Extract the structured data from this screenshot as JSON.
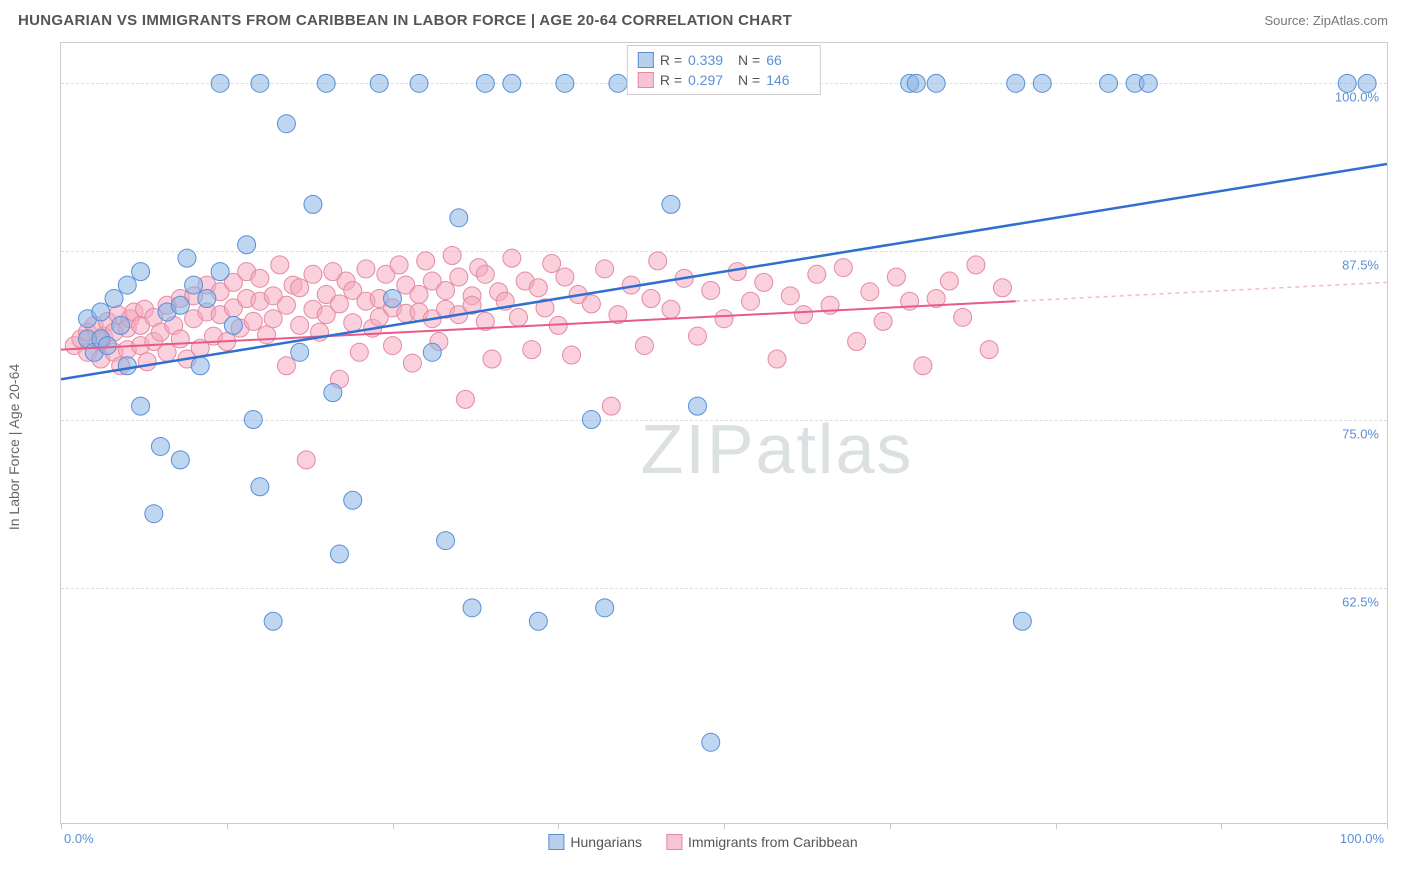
{
  "header": {
    "title": "HUNGARIAN VS IMMIGRANTS FROM CARIBBEAN IN LABOR FORCE | AGE 20-64 CORRELATION CHART",
    "source": "Source: ZipAtlas.com"
  },
  "chart": {
    "type": "scatter",
    "ylabel": "In Labor Force | Age 20-64",
    "watermark": "ZIPatlas",
    "xlim": [
      0,
      100
    ],
    "ylim": [
      45,
      103
    ],
    "y_ticks": [
      {
        "v": 62.5,
        "label": "62.5%"
      },
      {
        "v": 75.0,
        "label": "75.0%"
      },
      {
        "v": 87.5,
        "label": "87.5%"
      },
      {
        "v": 100.0,
        "label": "100.0%"
      }
    ],
    "x_ticks_labels": {
      "left": "0.0%",
      "right": "100.0%"
    },
    "x_tick_marks": [
      0,
      12.5,
      25,
      37.5,
      50,
      62.5,
      75,
      87.5,
      100
    ],
    "grid_color": "#dddddd",
    "background_color": "#ffffff",
    "border_color": "#cccccc",
    "marker_radius": 9,
    "legend_top": {
      "rows": [
        {
          "swatch_fill": "#b7d0ee",
          "swatch_border": "#5a8fd6",
          "r_label": "R =",
          "r_val": "0.339",
          "n_label": "N =",
          "n_val": "66"
        },
        {
          "swatch_fill": "#f6c4d2",
          "swatch_border": "#e48aa4",
          "r_label": "R =",
          "r_val": "0.297",
          "n_label": "N =",
          "n_val": "146"
        }
      ]
    },
    "legend_bottom": [
      {
        "swatch_fill": "#b7d0ee",
        "swatch_border": "#5a8fd6",
        "label": "Hungarians"
      },
      {
        "swatch_fill": "#f6c4d2",
        "swatch_border": "#e48aa4",
        "label": "Immigrants from Caribbean"
      }
    ],
    "series_blue": {
      "color_fill": "rgba(138,180,230,0.55)",
      "color_stroke": "#5a8fd6",
      "trend": {
        "x1": 0,
        "y1": 78.0,
        "x2": 100,
        "y2": 94.0,
        "color": "#2e6fd0",
        "width": 2.5
      },
      "points": [
        [
          2,
          81
        ],
        [
          2,
          82.5
        ],
        [
          2.5,
          80
        ],
        [
          3,
          81
        ],
        [
          3,
          83
        ],
        [
          3.5,
          80.5
        ],
        [
          4,
          84
        ],
        [
          4.5,
          82
        ],
        [
          5,
          85
        ],
        [
          5,
          79
        ],
        [
          6,
          86
        ],
        [
          6,
          76
        ],
        [
          7,
          68
        ],
        [
          7.5,
          73
        ],
        [
          8,
          83
        ],
        [
          9,
          83.5
        ],
        [
          9.5,
          87
        ],
        [
          10,
          85
        ],
        [
          10.5,
          79
        ],
        [
          11,
          84
        ],
        [
          12,
          100
        ],
        [
          12,
          86
        ],
        [
          13,
          82
        ],
        [
          14,
          88
        ],
        [
          14.5,
          75
        ],
        [
          15,
          70
        ],
        [
          16,
          60
        ],
        [
          17,
          97
        ],
        [
          18,
          80
        ],
        [
          19,
          91
        ],
        [
          20,
          100
        ],
        [
          20.5,
          77
        ],
        [
          21,
          65
        ],
        [
          22,
          69
        ],
        [
          24,
          100
        ],
        [
          25,
          84
        ],
        [
          27,
          100
        ],
        [
          28,
          80
        ],
        [
          29,
          66
        ],
        [
          30,
          90
        ],
        [
          31,
          61
        ],
        [
          32,
          100
        ],
        [
          34,
          100
        ],
        [
          36,
          60
        ],
        [
          38,
          100
        ],
        [
          40,
          75
        ],
        [
          41,
          61
        ],
        [
          44,
          100
        ],
        [
          45,
          100
        ],
        [
          46,
          91
        ],
        [
          48,
          76
        ],
        [
          49,
          51
        ],
        [
          64,
          100
        ],
        [
          64.5,
          100
        ],
        [
          66,
          100
        ],
        [
          72,
          100
        ],
        [
          72.5,
          60
        ],
        [
          74,
          100
        ],
        [
          79,
          100
        ],
        [
          81,
          100
        ],
        [
          82,
          100
        ],
        [
          97,
          100
        ],
        [
          98.5,
          100
        ],
        [
          15,
          100
        ],
        [
          42,
          100
        ],
        [
          9,
          72
        ]
      ]
    },
    "series_pink": {
      "color_fill": "rgba(244,170,190,0.55)",
      "color_stroke": "#e48aa4",
      "trend": {
        "x1": 0,
        "y1": 80.2,
        "x2": 72,
        "y2": 83.8,
        "color": "#e75a8a",
        "width": 2
      },
      "trend_extrapolate": {
        "x1": 72,
        "y1": 83.8,
        "x2": 100,
        "y2": 85.2,
        "color": "#f5b8c9"
      },
      "points": [
        [
          1,
          80.5
        ],
        [
          1.5,
          81
        ],
        [
          2,
          80
        ],
        [
          2,
          81.5
        ],
        [
          2.5,
          82
        ],
        [
          3,
          79.5
        ],
        [
          3,
          80.8
        ],
        [
          3.2,
          81.2
        ],
        [
          3.5,
          82.3
        ],
        [
          4,
          80
        ],
        [
          4,
          81.5
        ],
        [
          4.3,
          82.8
        ],
        [
          4.5,
          79
        ],
        [
          5,
          80.2
        ],
        [
          5,
          81.8
        ],
        [
          5.2,
          82.5
        ],
        [
          5.5,
          83
        ],
        [
          6,
          80.5
        ],
        [
          6,
          82
        ],
        [
          6.3,
          83.2
        ],
        [
          6.5,
          79.3
        ],
        [
          7,
          80.8
        ],
        [
          7,
          82.6
        ],
        [
          7.5,
          81.5
        ],
        [
          8,
          83.5
        ],
        [
          8,
          80
        ],
        [
          8.5,
          82
        ],
        [
          9,
          84
        ],
        [
          9,
          81
        ],
        [
          9.5,
          79.5
        ],
        [
          10,
          82.5
        ],
        [
          10,
          84.2
        ],
        [
          10.5,
          80.3
        ],
        [
          11,
          83
        ],
        [
          11,
          85
        ],
        [
          11.5,
          81.2
        ],
        [
          12,
          82.8
        ],
        [
          12,
          84.5
        ],
        [
          12.5,
          80.8
        ],
        [
          13,
          83.3
        ],
        [
          13,
          85.2
        ],
        [
          13.5,
          81.8
        ],
        [
          14,
          84
        ],
        [
          14,
          86
        ],
        [
          14.5,
          82.3
        ],
        [
          15,
          83.8
        ],
        [
          15,
          85.5
        ],
        [
          15.5,
          81.3
        ],
        [
          16,
          84.2
        ],
        [
          16,
          82.5
        ],
        [
          16.5,
          86.5
        ],
        [
          17,
          83.5
        ],
        [
          17,
          79
        ],
        [
          17.5,
          85
        ],
        [
          18,
          82
        ],
        [
          18,
          84.8
        ],
        [
          18.5,
          72
        ],
        [
          19,
          83.2
        ],
        [
          19,
          85.8
        ],
        [
          19.5,
          81.5
        ],
        [
          20,
          84.3
        ],
        [
          20,
          82.8
        ],
        [
          20.5,
          86
        ],
        [
          21,
          83.6
        ],
        [
          21,
          78
        ],
        [
          21.5,
          85.3
        ],
        [
          22,
          82.2
        ],
        [
          22,
          84.6
        ],
        [
          22.5,
          80
        ],
        [
          23,
          83.8
        ],
        [
          23,
          86.2
        ],
        [
          23.5,
          81.8
        ],
        [
          24,
          84
        ],
        [
          24,
          82.6
        ],
        [
          24.5,
          85.8
        ],
        [
          25,
          83.3
        ],
        [
          25,
          80.5
        ],
        [
          25.5,
          86.5
        ],
        [
          26,
          82.9
        ],
        [
          26,
          85
        ],
        [
          26.5,
          79.2
        ],
        [
          27,
          84.3
        ],
        [
          27,
          83
        ],
        [
          27.5,
          86.8
        ],
        [
          28,
          82.5
        ],
        [
          28,
          85.3
        ],
        [
          28.5,
          80.8
        ],
        [
          29,
          84.6
        ],
        [
          29,
          83.2
        ],
        [
          29.5,
          87.2
        ],
        [
          30,
          82.8
        ],
        [
          30,
          85.6
        ],
        [
          30.5,
          76.5
        ],
        [
          31,
          84.2
        ],
        [
          31,
          83.5
        ],
        [
          31.5,
          86.3
        ],
        [
          32,
          82.3
        ],
        [
          32,
          85.8
        ],
        [
          32.5,
          79.5
        ],
        [
          33,
          84.5
        ],
        [
          33.5,
          83.8
        ],
        [
          34,
          87
        ],
        [
          34.5,
          82.6
        ],
        [
          35,
          85.3
        ],
        [
          35.5,
          80.2
        ],
        [
          36,
          84.8
        ],
        [
          36.5,
          83.3
        ],
        [
          37,
          86.6
        ],
        [
          37.5,
          82
        ],
        [
          38,
          85.6
        ],
        [
          38.5,
          79.8
        ],
        [
          39,
          84.3
        ],
        [
          40,
          83.6
        ],
        [
          41,
          86.2
        ],
        [
          41.5,
          76
        ],
        [
          42,
          82.8
        ],
        [
          43,
          85
        ],
        [
          44,
          80.5
        ],
        [
          44.5,
          84
        ],
        [
          45,
          86.8
        ],
        [
          46,
          83.2
        ],
        [
          47,
          85.5
        ],
        [
          48,
          81.2
        ],
        [
          49,
          84.6
        ],
        [
          50,
          82.5
        ],
        [
          51,
          86
        ],
        [
          52,
          83.8
        ],
        [
          53,
          85.2
        ],
        [
          54,
          79.5
        ],
        [
          55,
          84.2
        ],
        [
          56,
          82.8
        ],
        [
          57,
          85.8
        ],
        [
          58,
          83.5
        ],
        [
          59,
          86.3
        ],
        [
          60,
          80.8
        ],
        [
          61,
          84.5
        ],
        [
          62,
          82.3
        ],
        [
          63,
          85.6
        ],
        [
          64,
          83.8
        ],
        [
          65,
          79
        ],
        [
          66,
          84
        ],
        [
          67,
          85.3
        ],
        [
          68,
          82.6
        ],
        [
          69,
          86.5
        ],
        [
          70,
          80.2
        ],
        [
          71,
          84.8
        ]
      ]
    }
  }
}
